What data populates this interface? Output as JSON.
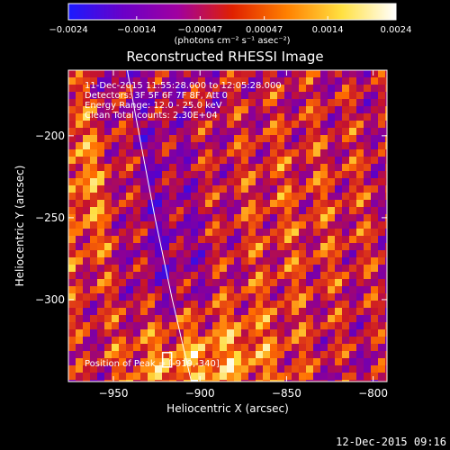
{
  "chart_data": {
    "type": "heatmap",
    "title": "Reconstructed RHESSI Image",
    "xlabel": "Heliocentric X (arcsec)",
    "ylabel": "Heliocentric Y (arcsec)",
    "xlim": [
      -976,
      -792
    ],
    "ylim": [
      -350,
      -160
    ],
    "x_ticks": [
      -950,
      -900,
      -850,
      -800
    ],
    "x_tick_labels": [
      "−950",
      "−900",
      "−850",
      "−800"
    ],
    "y_ticks": [
      -200,
      -250,
      -300
    ],
    "y_tick_labels": [
      "−200",
      "−250",
      "−300"
    ],
    "colorbar": {
      "range": [
        -0.0024,
        0.0024
      ],
      "ticks": [
        -0.0024,
        -0.0014,
        -0.00047,
        0.00047,
        0.0014,
        0.0024
      ],
      "tick_labels": [
        "−0.0024",
        "−0.0014",
        "−0.00047",
        "0.00047",
        "0.0014",
        "0.0024"
      ],
      "unit_label": "(photons cm⁻² s⁻¹ asec⁻²)",
      "colors": [
        "#1a1aff",
        "#6a00c8",
        "#a000a0",
        "#e02000",
        "#ff8000",
        "#ffe040",
        "#ffffff"
      ]
    },
    "info_lines": [
      "11-Dec-2015 11:55:28.000 to 12:05:28.000",
      "Detectors: 3F 5F 6F 7F 8F, Att 0",
      "Energy Range: 12.0 - 25.0 keV",
      "Clean    Total counts: 2.30E+04"
    ],
    "peak_label": "Position of Peak = [-919,-340]",
    "peak": [
      -919,
      -340
    ],
    "limb_curve": [
      [
        -942,
        -160
      ],
      [
        -935,
        -200
      ],
      [
        -926,
        -250
      ],
      [
        -916,
        -300
      ],
      [
        -905,
        -350
      ]
    ]
  },
  "footer": {
    "timestamp": "12-Dec-2015 09:16"
  }
}
